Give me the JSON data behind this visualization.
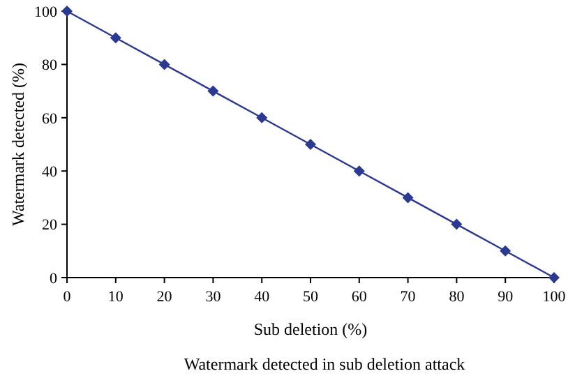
{
  "chart_data": {
    "type": "line",
    "title": "Watermark detected in sub deletion attack",
    "xlabel": "Sub deletion (%)",
    "ylabel": "Watermark detected (%)",
    "x": [
      0,
      10,
      20,
      30,
      40,
      50,
      60,
      70,
      80,
      90,
      100
    ],
    "series": [
      {
        "color": "#2b3990",
        "values": [
          100,
          90,
          80,
          70,
          60,
          50,
          40,
          30,
          20,
          10,
          0
        ]
      }
    ],
    "xlim": [
      0,
      100
    ],
    "xticks": [
      0,
      10,
      20,
      30,
      40,
      50,
      60,
      70,
      80,
      90,
      100
    ],
    "ylim": [
      0,
      100
    ],
    "yticks": [
      0,
      20,
      40,
      60,
      80,
      100
    ],
    "marker": "diamond",
    "line_style": "solid",
    "grid": false
  }
}
